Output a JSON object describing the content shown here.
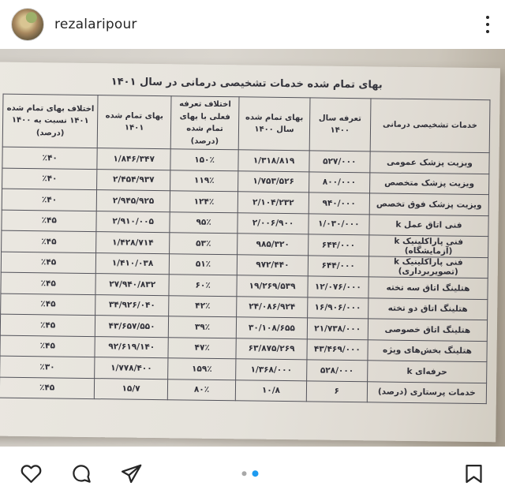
{
  "header": {
    "username": "rezalaripour",
    "menu_icon": "kebab-menu-icon"
  },
  "photo": {
    "title": "بهای تمام شده خدمات تشخیصی درمانی در سال ۱۴۰۱",
    "table": {
      "columns": [
        "خدمات تشخیصی درمانی",
        "تعرفه سال ۱۴۰۰",
        "بهای تمام شده سال ۱۴۰۰",
        "اختلاف تعرفه فعلی با بهای تمام شده (درصد)",
        "بهای تمام شده ۱۴۰۱",
        "اختلاف بهای تمام شده ۱۴۰۱ نسبت به ۱۴۰۰ (درصد)"
      ],
      "rows": [
        [
          "ویزیت پزشک عمومی",
          "۵۲۷/۰۰۰",
          "۱/۳۱۸/۸۱۹",
          "۱۵۰٪",
          "۱/۸۴۶/۳۴۷",
          "٪۴۰"
        ],
        [
          "ویزیت پزشک متخصص",
          "۸۰۰/۰۰۰",
          "۱/۷۵۳/۵۲۶",
          "۱۱۹٪",
          "۲/۴۵۴/۹۳۷",
          "٪۴۰"
        ],
        [
          "ویزیت پزشک فوق تخصص",
          "۹۴۰/۰۰۰",
          "۲/۱۰۴/۲۳۲",
          "۱۲۴٪",
          "۲/۹۴۵/۹۲۵",
          "٪۴۰"
        ],
        [
          "فنی اتاق عمل k",
          "۱/۰۳۰/۰۰۰",
          "۲/۰۰۶/۹۰۰",
          "۹۵٪",
          "۲/۹۱۰/۰۰۵",
          "٪۴۵"
        ],
        [
          "فنی پاراکلینیک k (آزمایشگاه)",
          "۶۴۴/۰۰۰",
          "۹۸۵/۳۲۰",
          "۵۳٪",
          "۱/۴۲۸/۷۱۴",
          "٪۴۵"
        ],
        [
          "فنی پاراکلینیک k (تصویربرداری)",
          "۶۴۴/۰۰۰",
          "۹۷۲/۴۴۰",
          "۵۱٪",
          "۱/۴۱۰/۰۳۸",
          "٪۴۵"
        ],
        [
          "هتلینگ اتاق سه تخته",
          "۱۲/۰۷۶/۰۰۰",
          "۱۹/۲۶۹/۵۳۹",
          "۶۰٪",
          "۲۷/۹۴۰/۸۳۲",
          "٪۴۵"
        ],
        [
          "هتلینگ اتاق دو تخته",
          "۱۶/۹۰۶/۰۰۰",
          "۲۴/۰۸۶/۹۲۴",
          "۴۲٪",
          "۳۴/۹۲۶/۰۴۰",
          "٪۴۵"
        ],
        [
          "هتلینگ اتاق خصوصی",
          "۲۱/۷۳۸/۰۰۰",
          "۳۰/۱۰۸/۶۵۵",
          "۳۹٪",
          "۴۳/۶۵۷/۵۵۰",
          "٪۴۵"
        ],
        [
          "هتلینگ بخش‌های ویژه",
          "۴۳/۴۶۹/۰۰۰",
          "۶۳/۸۷۵/۲۶۹",
          "۴۷٪",
          "۹۲/۶۱۹/۱۴۰",
          "٪۴۵"
        ],
        [
          "حرفه‌ای k",
          "۵۲۸/۰۰۰",
          "۱/۳۶۸/۰۰۰",
          "۱۵۹٪",
          "۱/۷۷۸/۴۰۰",
          "٪۳۰"
        ],
        [
          "خدمات پرستاری (درصد)",
          "۶",
          "۱۰/۸",
          "۸۰٪",
          "۱۵/۷",
          "٪۴۵"
        ]
      ]
    }
  },
  "footer": {
    "icons": [
      "like-heart-icon",
      "comment-icon",
      "share-icon",
      "save-bookmark-icon"
    ],
    "pagination": {
      "count": 2,
      "active_index": 1
    },
    "colors": {
      "active_dot": "#1e9bf0",
      "inactive_dot": "#a8a8a8",
      "icon_stroke": "#262626"
    }
  }
}
